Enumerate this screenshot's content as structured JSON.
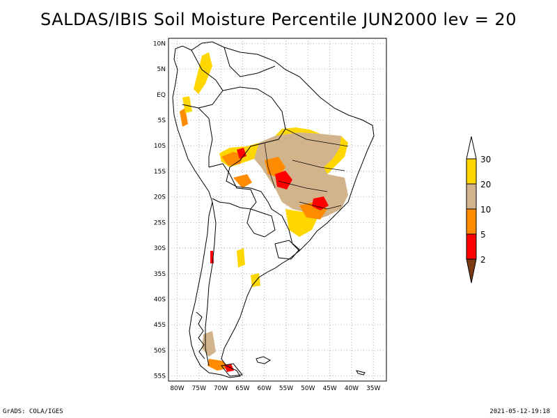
{
  "title": "SALDAS/IBIS Soil Moisture Percentile JUN2000 lev = 20",
  "map": {
    "lat_labels": [
      "10N",
      "5N",
      "EQ",
      "5S",
      "10S",
      "15S",
      "20S",
      "25S",
      "30S",
      "35S",
      "40S",
      "45S",
      "50S",
      "55S"
    ],
    "lon_labels": [
      "80W",
      "75W",
      "70W",
      "65W",
      "60W",
      "55W",
      "50W",
      "45W",
      "40W",
      "35W"
    ],
    "lat_range": [
      -56,
      11
    ],
    "lon_range": [
      -82,
      -32
    ],
    "grid": true
  },
  "legend": {
    "labels": [
      "2",
      "5",
      "10",
      "20",
      "30"
    ],
    "colors": {
      "below_2": "#7a3a12",
      "2_5": "#ff0000",
      "5_10": "#ff8c00",
      "10_20": "#d2b48c",
      "20_30": "#ffd700",
      "above_30": "#ffffff"
    }
  },
  "footer": {
    "left": "GrADS: COLA/IGES",
    "right": "2021-05-12-19:18"
  }
}
